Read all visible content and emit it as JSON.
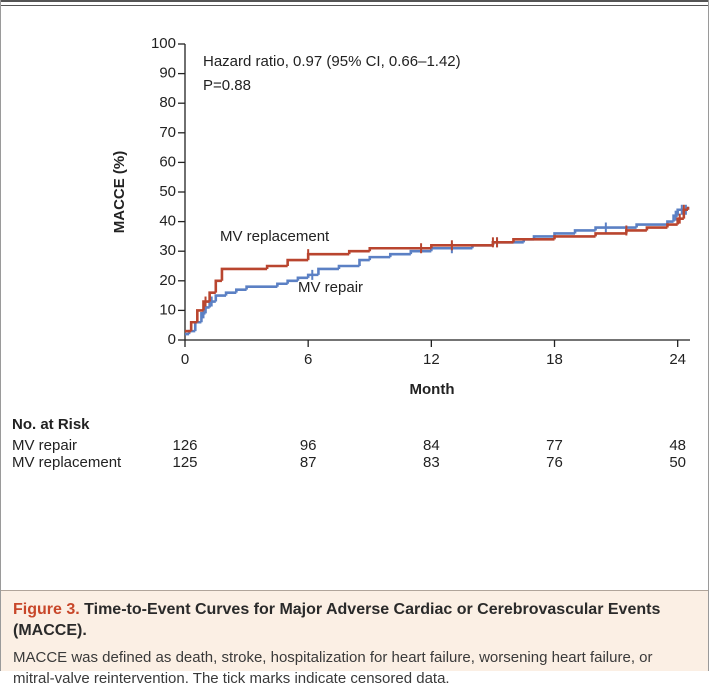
{
  "chart_data": {
    "type": "step",
    "ylabel": "MACCE (%)",
    "xlabel": "Month",
    "annotations": [
      "Hazard ratio, 0.97 (95% CI, 0.66–1.42)",
      "P=0.88"
    ],
    "xlim": [
      0,
      24.6
    ],
    "xticks": [
      0,
      6,
      12,
      18,
      24
    ],
    "ylim": [
      0,
      100
    ],
    "yticks": [
      0,
      10,
      20,
      30,
      40,
      50,
      60,
      70,
      80,
      90,
      100
    ],
    "series": [
      {
        "name": "MV repair",
        "color": "#5b80c4",
        "x": [
          0,
          0.2,
          0.5,
          0.8,
          1.0,
          1.2,
          1.5,
          2.0,
          2.5,
          3,
          4.5,
          5,
          5.5,
          6,
          6.5,
          7.5,
          8.5,
          9,
          10,
          11,
          12,
          14,
          15,
          16.5,
          17,
          18,
          19,
          20,
          22,
          23.5,
          23.8,
          24,
          24.5
        ],
        "values": [
          2,
          3,
          6,
          9,
          11,
          13,
          15,
          16,
          17,
          18,
          19,
          20,
          21,
          22,
          24,
          25,
          27,
          28,
          29,
          30,
          31,
          32,
          33,
          34,
          35,
          36,
          37,
          38,
          39,
          40,
          42,
          44,
          45
        ],
        "censored": [
          0.9,
          1.3,
          6.2,
          13,
          15.2,
          20.5,
          23.9,
          24.2,
          24.4
        ]
      },
      {
        "name": "MV replacement",
        "color": "#b9452f",
        "x": [
          0,
          0.3,
          0.6,
          0.9,
          1.2,
          1.5,
          1.8,
          4,
          5,
          6,
          8,
          9,
          12,
          15,
          16,
          18,
          20,
          21.5,
          22.5,
          23.5,
          24,
          24.3,
          24.5
        ],
        "values": [
          3,
          6,
          10,
          13,
          16,
          20,
          24,
          25,
          27,
          29,
          30,
          31,
          32,
          33,
          34,
          35,
          36,
          37,
          38,
          39,
          41,
          44,
          45
        ],
        "censored": [
          1.0,
          6.0,
          11.5,
          13,
          15,
          15.2,
          21.5,
          24.1,
          24.3
        ]
      }
    ],
    "risk_table": {
      "title": "No. at Risk",
      "values": [
        [
          126,
          96,
          84,
          77,
          48
        ],
        [
          125,
          87,
          83,
          76,
          50
        ]
      ]
    }
  },
  "caption": {
    "label": "Figure 3.",
    "title": "Time-to-Event Curves for Major Adverse Cardiac or Cerebrovascular Events (MACCE).",
    "text": "MACCE was defined as death, stroke, hospitalization for heart failure, worsening heart failure, or mitral-valve reintervention. The tick marks indicate censored data."
  }
}
